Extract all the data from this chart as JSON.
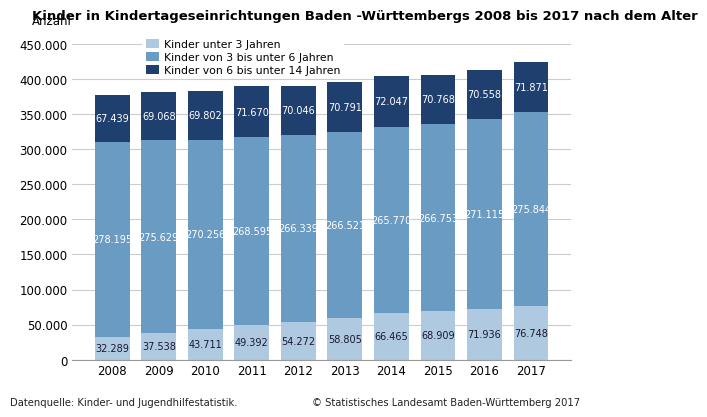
{
  "years": [
    2008,
    2009,
    2010,
    2011,
    2012,
    2013,
    2014,
    2015,
    2016,
    2017
  ],
  "unter3": [
    32289,
    37538,
    43711,
    49392,
    54272,
    58805,
    66465,
    68909,
    71936,
    76748
  ],
  "drei_bis_unter6": [
    278195,
    275629,
    270256,
    268595,
    266339,
    266521,
    265770,
    266753,
    271115,
    275844
  ],
  "sechs_bis_unter14": [
    67439,
    69068,
    69802,
    71670,
    70046,
    70791,
    72047,
    70768,
    70558,
    71871
  ],
  "color_unter3": "#aec9e0",
  "color_3_6": "#6a9bc3",
  "color_6_14": "#1f3f6e",
  "title": "Kinder in Kindertageseinrichtungen Baden -Württembergs 2008 bis 2017 nach dem Alter",
  "ylabel": "Anzahl",
  "legend_unter3": "Kinder unter 3 Jahren",
  "legend_3_6": "Kinder von 3 bis unter 6 Jahren",
  "legend_6_14": "Kinder von 6 bis unter 14 Jahren",
  "footer_left": "Datenquelle: Kinder- und Jugendhilfestatistik.",
  "footer_right": "© Statistisches Landesamt Baden-Württemberg 2017",
  "ylim": [
    0,
    470000
  ],
  "yticks": [
    0,
    50000,
    100000,
    150000,
    200000,
    250000,
    300000,
    350000,
    400000,
    450000
  ],
  "bg_color": "#ffffff",
  "grid_color": "#cccccc"
}
